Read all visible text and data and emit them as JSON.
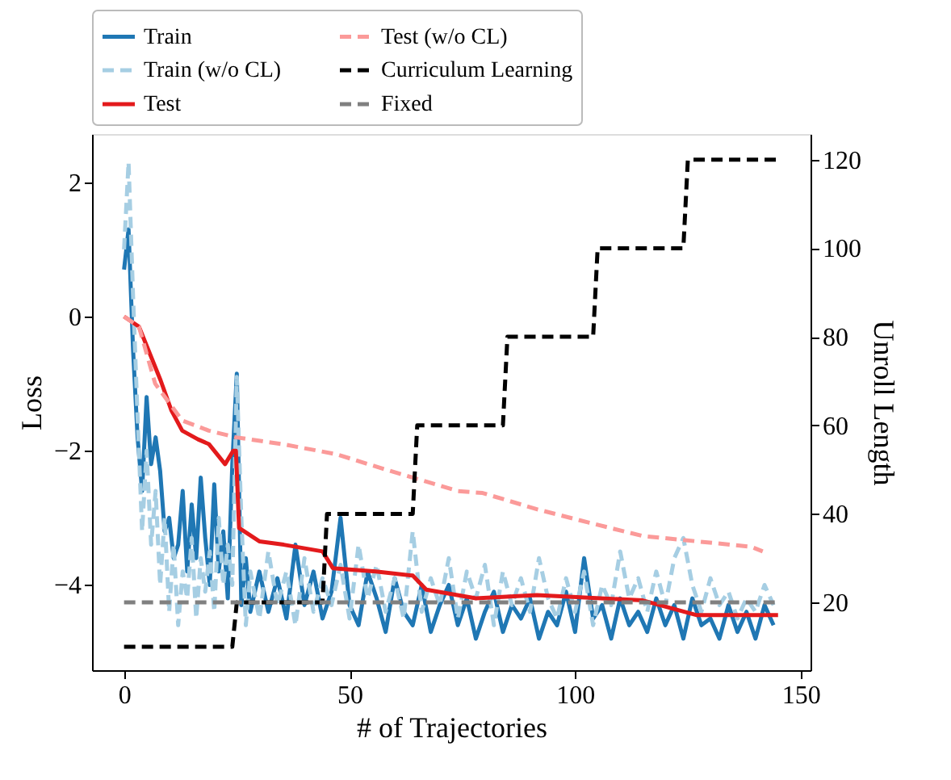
{
  "chart_data": {
    "type": "line",
    "xlabel": "# of Trajectories",
    "ylabel": "Loss",
    "y2label": "Unroll Length",
    "xlim": [
      -7.1,
      152.2
    ],
    "xticks": [
      0,
      50,
      100,
      150
    ],
    "ylim": [
      -5.27,
      2.72
    ],
    "yticks": [
      -4,
      -2,
      0,
      2
    ],
    "y2lim": [
      4.7,
      125.8
    ],
    "y2ticks": [
      20,
      40,
      60,
      80,
      100,
      120
    ],
    "grid": false,
    "legend": "top",
    "marker": "none",
    "series": [
      {
        "name": "Train",
        "color": "#1f77b4",
        "line_style": "solid",
        "x": [
          0,
          1,
          2,
          3,
          4,
          5,
          6,
          7,
          8,
          9,
          10,
          11,
          12,
          13,
          14,
          15,
          16,
          17,
          18,
          19,
          20,
          21,
          22,
          23,
          24,
          25,
          26,
          27,
          28,
          30,
          32,
          34,
          36,
          38,
          40,
          42,
          44,
          46,
          48,
          50,
          52,
          54,
          56,
          58,
          60,
          62,
          64,
          66,
          68,
          70,
          72,
          74,
          76,
          78,
          80,
          82,
          84,
          86,
          88,
          90,
          92,
          94,
          96,
          98,
          100,
          102,
          104,
          106,
          108,
          110,
          112,
          114,
          116,
          118,
          120,
          122,
          124,
          126,
          128,
          130,
          132,
          134,
          136,
          138,
          140,
          142,
          144
        ],
        "values": [
          0.7,
          1.3,
          -0.5,
          -1.8,
          -2.6,
          -1.2,
          -2.2,
          -1.8,
          -2.3,
          -3.2,
          -3.0,
          -3.6,
          -3.4,
          -2.6,
          -3.8,
          -2.8,
          -3.6,
          -2.4,
          -3.3,
          -4.0,
          -2.5,
          -3.8,
          -3.2,
          -4.2,
          -2.2,
          -0.85,
          -4.3,
          -3.6,
          -4.4,
          -3.8,
          -4.4,
          -3.9,
          -4.5,
          -3.4,
          -4.3,
          -3.8,
          -4.5,
          -4.1,
          -3.0,
          -4.3,
          -4.6,
          -3.8,
          -4.2,
          -4.7,
          -3.9,
          -4.4,
          -4.6,
          -4.0,
          -4.7,
          -4.3,
          -4.0,
          -4.6,
          -4.2,
          -4.8,
          -4.4,
          -4.1,
          -4.7,
          -4.3,
          -4.5,
          -4.2,
          -4.8,
          -4.4,
          -4.6,
          -4.1,
          -4.7,
          -3.6,
          -4.5,
          -4.3,
          -4.8,
          -4.2,
          -4.6,
          -4.4,
          -4.7,
          -4.2,
          -4.6,
          -4.3,
          -4.8,
          -4.2,
          -4.6,
          -4.5,
          -4.8,
          -4.3,
          -4.7,
          -4.4,
          -4.8,
          -4.3,
          -4.6
        ]
      },
      {
        "name": "Train (w/o CL)",
        "color": "#a6cee3",
        "line_style": "dashed",
        "x": [
          0,
          1,
          2,
          3,
          4,
          5,
          6,
          7,
          8,
          9,
          10,
          11,
          12,
          13,
          14,
          15,
          16,
          17,
          18,
          19,
          20,
          21,
          22,
          23,
          24,
          25,
          26,
          27,
          28,
          30,
          32,
          34,
          36,
          38,
          40,
          42,
          44,
          46,
          48,
          50,
          52,
          54,
          56,
          58,
          60,
          62,
          64,
          66,
          68,
          70,
          72,
          74,
          76,
          78,
          80,
          82,
          84,
          86,
          88,
          90,
          92,
          94,
          96,
          98,
          100,
          102,
          104,
          106,
          108,
          110,
          112,
          114,
          116,
          118,
          120,
          122,
          124,
          126,
          128,
          130,
          132,
          134,
          136,
          138,
          140,
          142,
          144
        ],
        "values": [
          1.0,
          2.3,
          0.3,
          -1.5,
          -3.2,
          -2.0,
          -3.4,
          -2.6,
          -4.0,
          -3.0,
          -4.4,
          -3.4,
          -4.6,
          -3.8,
          -4.2,
          -3.3,
          -4.5,
          -3.6,
          -4.1,
          -3.5,
          -4.4,
          -3.0,
          -4.0,
          -3.4,
          -4.0,
          -0.9,
          -3.0,
          -4.6,
          -3.8,
          -4.5,
          -3.5,
          -4.3,
          -3.8,
          -4.6,
          -3.6,
          -4.4,
          -3.9,
          -4.3,
          -3.7,
          -4.5,
          -3.4,
          -4.2,
          -3.7,
          -4.4,
          -3.9,
          -4.5,
          -3.2,
          -4.4,
          -3.9,
          -4.3,
          -3.6,
          -4.5,
          -3.8,
          -4.2,
          -3.7,
          -4.6,
          -3.8,
          -4.3,
          -3.9,
          -4.4,
          -3.6,
          -4.2,
          -4.5,
          -3.9,
          -4.4,
          -3.8,
          -4.6,
          -4.0,
          -4.3,
          -3.5,
          -4.2,
          -3.9,
          -4.4,
          -3.8,
          -4.3,
          -3.6,
          -3.3,
          -4.0,
          -4.4,
          -3.9,
          -4.3,
          -4.1,
          -4.5,
          -4.2,
          -4.4,
          -4.0,
          -4.3
        ]
      },
      {
        "name": "Test",
        "color": "#e31a1c",
        "line_style": "solid",
        "x": [
          0,
          3.3,
          5.7,
          8.1,
          10.5,
          12.9,
          16.4,
          18.8,
          22.4,
          24.2,
          24.8,
          25.5,
          30,
          35.4,
          44,
          46.3,
          55.8,
          64,
          67,
          78,
          91.5,
          115,
          127,
          145
        ],
        "values": [
          0,
          -0.15,
          -0.55,
          -0.95,
          -1.4,
          -1.7,
          -1.83,
          -1.9,
          -2.2,
          -2.0,
          -2.0,
          -3.15,
          -3.35,
          -3.4,
          -3.5,
          -3.75,
          -3.8,
          -3.86,
          -4.07,
          -4.2,
          -4.15,
          -4.23,
          -4.45,
          -4.45
        ]
      },
      {
        "name": "Test (w/o CL)",
        "color": "#fb9a99",
        "line_style": "dashed",
        "x": [
          0,
          3.3,
          6.9,
          12.9,
          18.8,
          24.8,
          35,
          47,
          59,
          67.6,
          74,
          79.5,
          91.5,
          103,
          115,
          127,
          139,
          141.6
        ],
        "values": [
          0,
          -0.15,
          -1.0,
          -1.55,
          -1.7,
          -1.8,
          -1.9,
          -2.05,
          -2.3,
          -2.47,
          -2.6,
          -2.63,
          -2.87,
          -3.07,
          -3.27,
          -3.35,
          -3.43,
          -3.5
        ]
      },
      {
        "name": "Curriculum Learning",
        "color": "#000000",
        "line_style": "dashed",
        "axis": "y2",
        "x": [
          0,
          24,
          25,
          44,
          45,
          64,
          65,
          84,
          85,
          104,
          105,
          124,
          125,
          145
        ],
        "values": [
          10,
          10,
          20,
          20,
          40,
          40,
          60,
          60,
          80,
          80,
          100,
          100,
          120,
          120
        ]
      },
      {
        "name": "Fixed",
        "color": "#808080",
        "line_style": "dashed",
        "axis": "y2",
        "x": [
          0,
          145
        ],
        "values": [
          20,
          20
        ]
      }
    ]
  }
}
